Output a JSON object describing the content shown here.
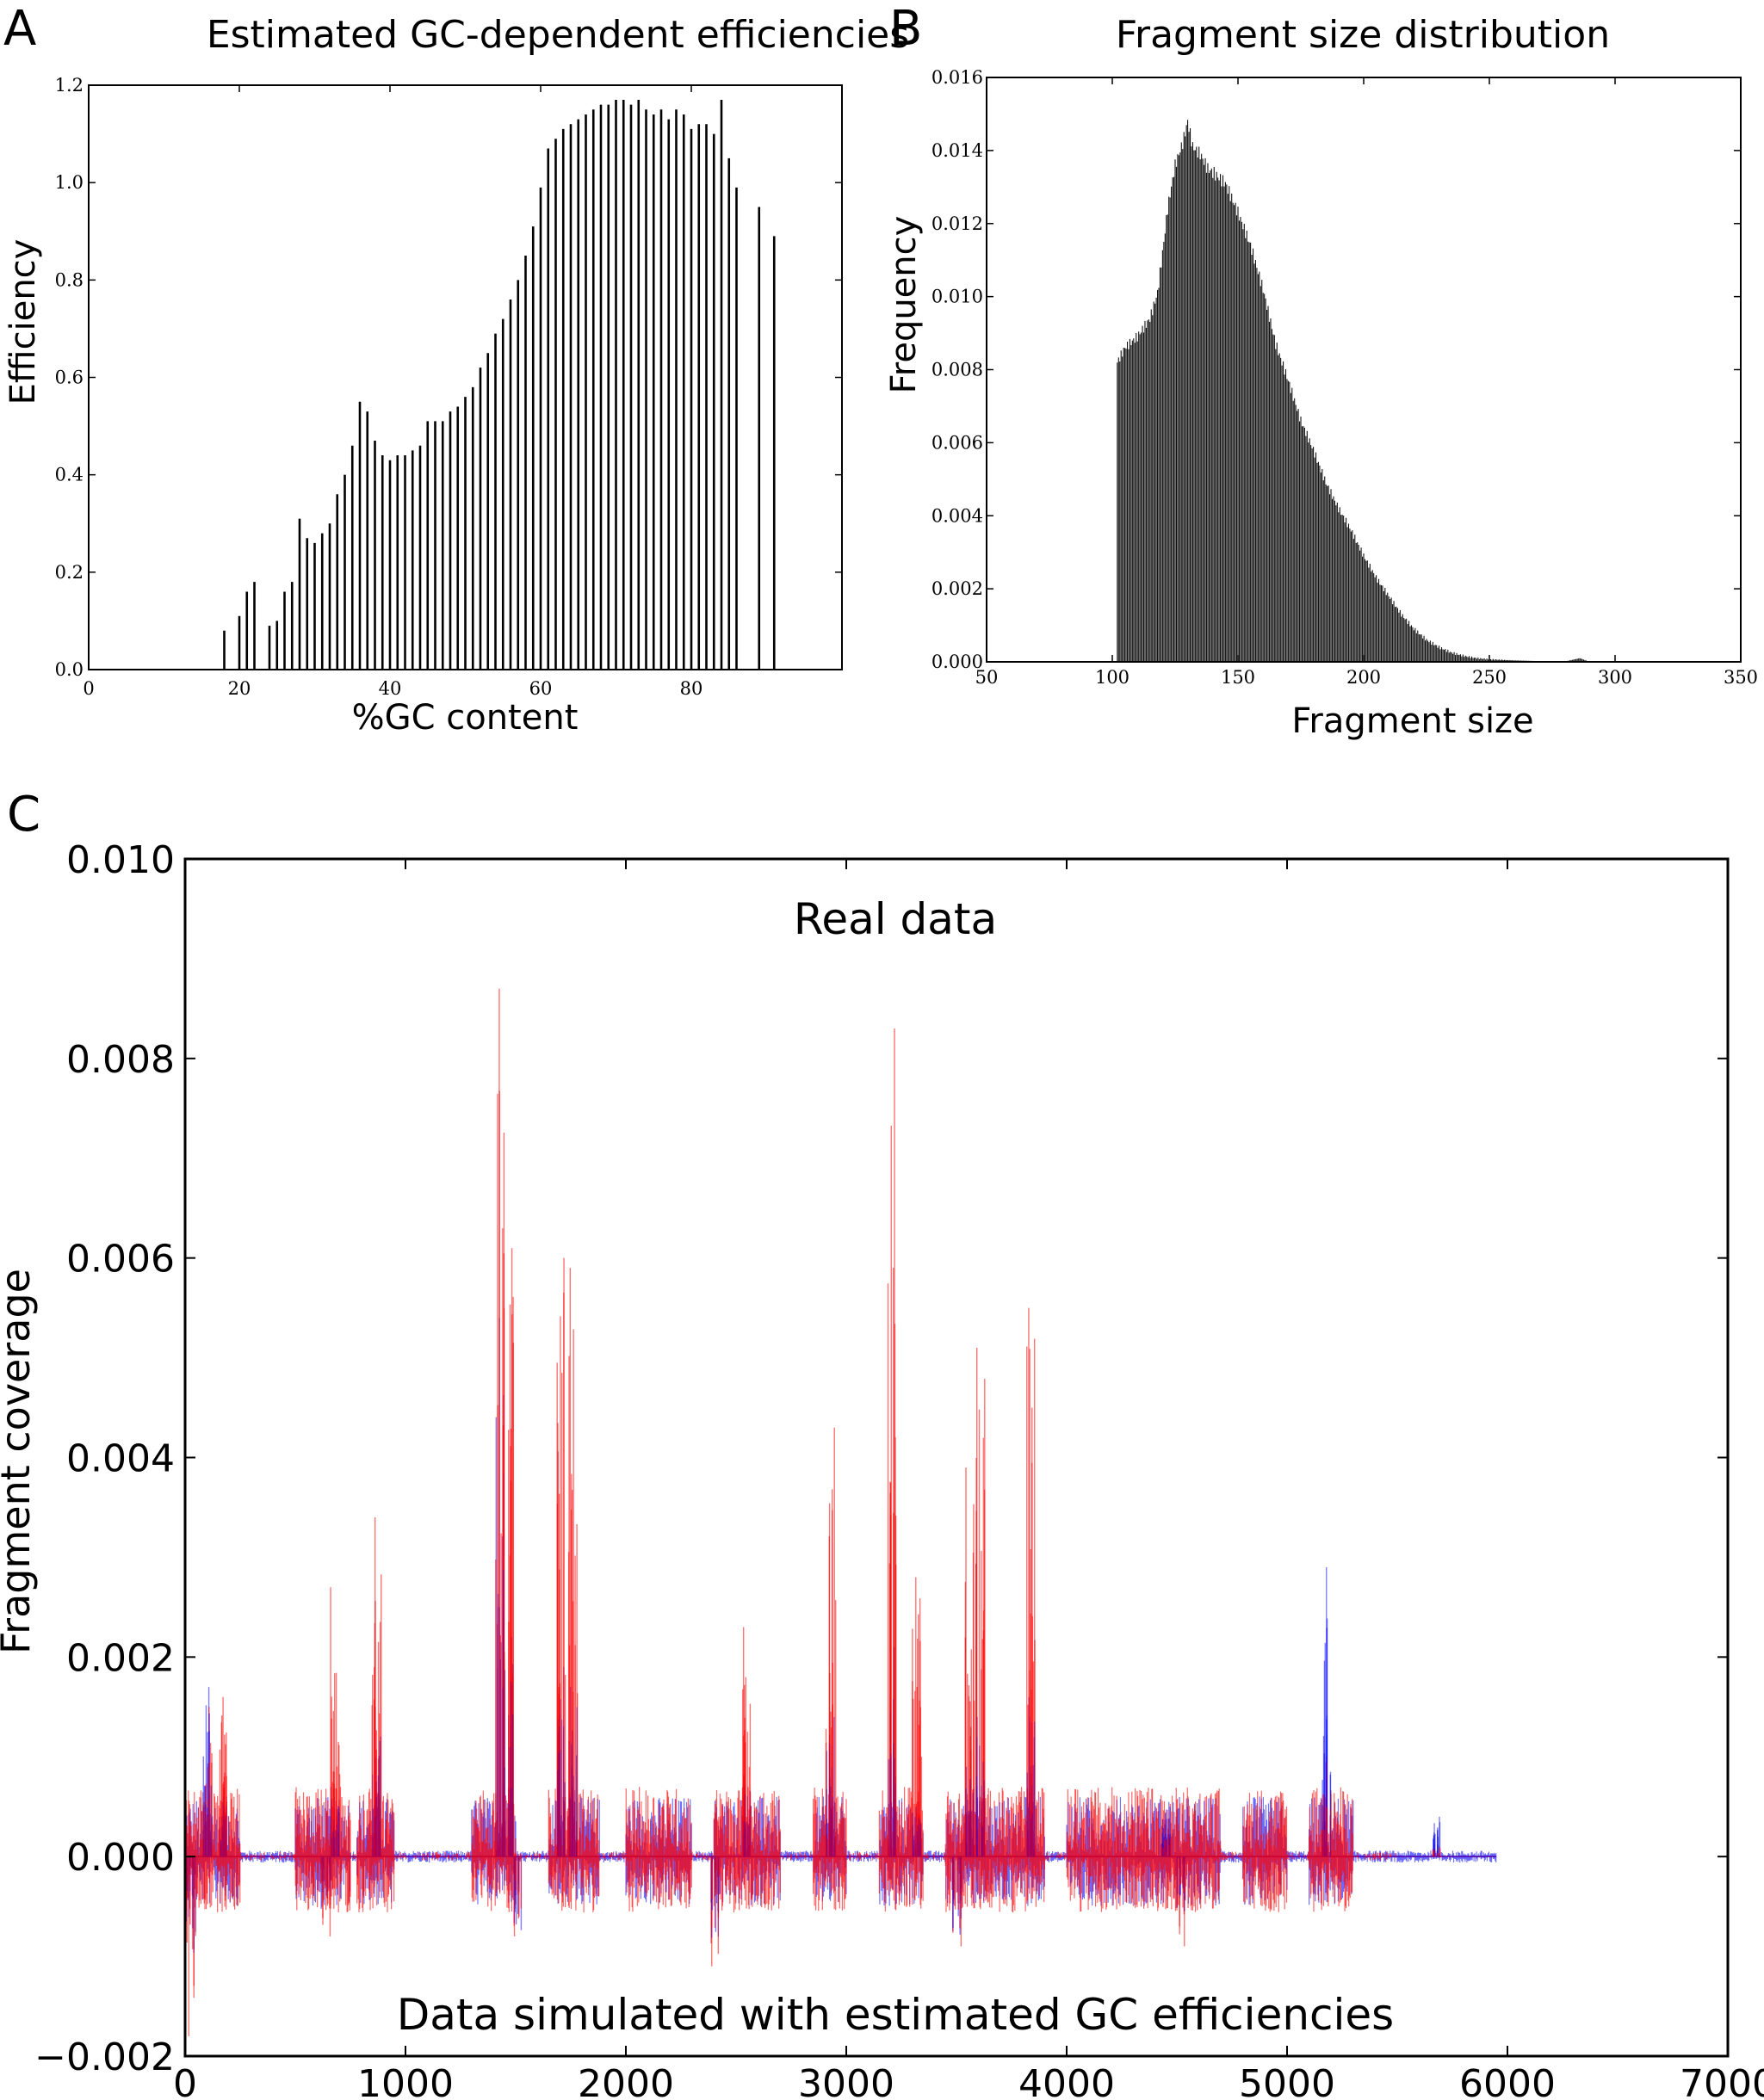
{
  "panels": {
    "a_letter": "A",
    "b_letter": "B",
    "c_letter": "C"
  },
  "chart_data": [
    {
      "id": "A",
      "type": "bar",
      "title": "Estimated GC-dependent efficiencies",
      "xlabel": "%GC content",
      "ylabel": "Efficiency",
      "xlim": [
        0,
        100
      ],
      "ylim": [
        0,
        1.2
      ],
      "xticks": [
        0,
        20,
        40,
        60,
        80
      ],
      "yticks": [
        0.0,
        0.2,
        0.4,
        0.6,
        0.8,
        1.0,
        1.2
      ],
      "xtick_labels": [
        "0",
        "20",
        "40",
        "60",
        "80"
      ],
      "ytick_labels": [
        "0.0",
        "0.2",
        "0.4",
        "0.6",
        "0.8",
        "1.0",
        "1.2"
      ],
      "x": [
        18,
        20,
        21,
        22,
        24,
        25,
        26,
        27,
        28,
        29,
        30,
        31,
        32,
        33,
        34,
        35,
        36,
        37,
        38,
        39,
        40,
        41,
        42,
        43,
        44,
        45,
        46,
        47,
        48,
        49,
        50,
        51,
        52,
        53,
        54,
        55,
        56,
        57,
        58,
        59,
        60,
        61,
        62,
        63,
        64,
        65,
        66,
        67,
        68,
        69,
        70,
        71,
        72,
        73,
        74,
        75,
        76,
        77,
        78,
        79,
        80,
        81,
        82,
        83,
        84,
        85,
        86,
        89,
        91
      ],
      "values": [
        0.08,
        0.11,
        0.16,
        0.18,
        0.09,
        0.1,
        0.16,
        0.18,
        0.31,
        0.27,
        0.26,
        0.28,
        0.3,
        0.36,
        0.4,
        0.46,
        0.55,
        0.53,
        0.47,
        0.44,
        0.43,
        0.44,
        0.44,
        0.45,
        0.46,
        0.51,
        0.51,
        0.51,
        0.53,
        0.54,
        0.56,
        0.58,
        0.62,
        0.65,
        0.69,
        0.72,
        0.76,
        0.8,
        0.85,
        0.91,
        0.99,
        1.07,
        1.09,
        1.11,
        1.12,
        1.13,
        1.14,
        1.15,
        1.16,
        1.16,
        1.17,
        1.17,
        1.16,
        1.17,
        1.15,
        1.14,
        1.15,
        1.13,
        1.15,
        1.14,
        1.11,
        1.12,
        1.12,
        1.1,
        1.17,
        1.05,
        0.99,
        0.95,
        0.89
      ]
    },
    {
      "id": "B",
      "type": "bar",
      "title": "Fragment size distribution",
      "xlabel": "Fragment size",
      "ylabel": "Frequency",
      "xlim": [
        50,
        350
      ],
      "ylim": [
        0,
        0.016
      ],
      "xticks": [
        50,
        100,
        150,
        200,
        250,
        300,
        350
      ],
      "yticks": [
        0.0,
        0.002,
        0.004,
        0.006,
        0.008,
        0.01,
        0.012,
        0.014,
        0.016
      ],
      "xtick_labels": [
        "50",
        "100",
        "150",
        "200",
        "250",
        "300",
        "350"
      ],
      "ytick_labels": [
        "0.000",
        "0.002",
        "0.004",
        "0.006",
        "0.008",
        "0.010",
        "0.012",
        "0.014",
        "0.016"
      ],
      "curve_points": [
        [
          102,
          0.0082
        ],
        [
          105,
          0.0086
        ],
        [
          110,
          0.0089
        ],
        [
          115,
          0.0094
        ],
        [
          118,
          0.0101
        ],
        [
          120,
          0.0112
        ],
        [
          122,
          0.0124
        ],
        [
          125,
          0.0136
        ],
        [
          128,
          0.0142
        ],
        [
          130,
          0.0148
        ],
        [
          132,
          0.0141
        ],
        [
          135,
          0.0139
        ],
        [
          138,
          0.0135
        ],
        [
          140,
          0.0134
        ],
        [
          145,
          0.0131
        ],
        [
          150,
          0.0123
        ],
        [
          155,
          0.0114
        ],
        [
          160,
          0.0102
        ],
        [
          165,
          0.0087
        ],
        [
          170,
          0.0077
        ],
        [
          175,
          0.0066
        ],
        [
          180,
          0.0058
        ],
        [
          185,
          0.0049
        ],
        [
          190,
          0.0042
        ],
        [
          195,
          0.0036
        ],
        [
          200,
          0.0029
        ],
        [
          205,
          0.0023
        ],
        [
          210,
          0.0018
        ],
        [
          215,
          0.0013
        ],
        [
          220,
          0.0009
        ],
        [
          225,
          0.0006
        ],
        [
          230,
          0.0004
        ],
        [
          235,
          0.00025
        ],
        [
          240,
          0.00016
        ],
        [
          245,
          0.0001
        ],
        [
          250,
          7e-05
        ],
        [
          260,
          4e-05
        ],
        [
          270,
          2e-05
        ],
        [
          280,
          1e-05
        ],
        [
          286,
          0.0001
        ],
        [
          290,
          0.0
        ]
      ]
    },
    {
      "id": "C",
      "type": "line",
      "xlabel": "",
      "ylabel": "Fragment coverage",
      "annotation_top": "Real data",
      "annotation_bottom": "Data simulated with estimated GC efficiencies",
      "xlim": [
        0,
        7000
      ],
      "ylim": [
        -0.002,
        0.01
      ],
      "xticks": [
        0,
        1000,
        2000,
        3000,
        4000,
        5000,
        6000,
        7000
      ],
      "yticks": [
        -0.002,
        0.0,
        0.002,
        0.004,
        0.006,
        0.008,
        0.01
      ],
      "xtick_labels": [
        "0",
        "1000",
        "2000",
        "3000",
        "4000",
        "5000",
        "6000",
        "7000"
      ],
      "ytick_labels": [
        "−0.002",
        "0.000",
        "0.002",
        "0.004",
        "0.006",
        "0.008",
        "0.010"
      ],
      "series": [
        {
          "name": "Real data",
          "color": "#ff0000"
        },
        {
          "name": "Data simulated with estimated GC efficiencies",
          "color": "#0000ff"
        }
      ],
      "data_extent": [
        0,
        5950
      ],
      "active_regions": [
        [
          0,
          250
        ],
        [
          500,
          750
        ],
        [
          780,
          950
        ],
        [
          1300,
          1500
        ],
        [
          1650,
          1880
        ],
        [
          2000,
          2300
        ],
        [
          2400,
          2700
        ],
        [
          2850,
          3000
        ],
        [
          3150,
          3350
        ],
        [
          3450,
          3900
        ],
        [
          4000,
          4700
        ],
        [
          4800,
          5000
        ],
        [
          5100,
          5300
        ]
      ],
      "peaks": [
        {
          "x": 100,
          "red": 0.0015,
          "blue": 0.0017
        },
        {
          "x": 180,
          "red": 0.0016,
          "blue": 0.0006
        },
        {
          "x": 680,
          "red": 0.0027,
          "blue": 0.0007
        },
        {
          "x": 870,
          "red": 0.0034,
          "blue": 0.0015
        },
        {
          "x": 1430,
          "red": 0.0087,
          "blue": 0.0054
        },
        {
          "x": 1470,
          "red": 0.0061,
          "blue": 0.0022
        },
        {
          "x": 1710,
          "red": 0.006,
          "blue": 0.0019
        },
        {
          "x": 1760,
          "red": 0.0059,
          "blue": 0.0017
        },
        {
          "x": 2550,
          "red": 0.0023,
          "blue": 0.0008
        },
        {
          "x": 2930,
          "red": 0.0043,
          "blue": 0.0014
        },
        {
          "x": 3210,
          "red": 0.0083,
          "blue": 0.0021
        },
        {
          "x": 3320,
          "red": 0.0028,
          "blue": 0.0005
        },
        {
          "x": 3560,
          "red": 0.0039,
          "blue": 0.0009
        },
        {
          "x": 3610,
          "red": 0.0051,
          "blue": 0.0014
        },
        {
          "x": 3840,
          "red": 0.0055,
          "blue": 0.0016
        },
        {
          "x": 4450,
          "red": 0.0002,
          "blue": 0.0005
        },
        {
          "x": 5180,
          "red": 0.001,
          "blue": 0.0029
        },
        {
          "x": 5680,
          "red": 0.0001,
          "blue": 0.0004
        }
      ],
      "troughs": [
        {
          "x": 30,
          "red": -0.0018,
          "blue": -0.001
        },
        {
          "x": 640,
          "red": -0.0008,
          "blue": -0.0006
        },
        {
          "x": 1500,
          "red": -0.0008,
          "blue": -0.0008
        },
        {
          "x": 2400,
          "red": -0.0011,
          "blue": -0.0009
        },
        {
          "x": 3500,
          "red": -0.0009,
          "blue": -0.0008
        },
        {
          "x": 4520,
          "red": -0.0009,
          "blue": -0.0007
        }
      ]
    }
  ]
}
